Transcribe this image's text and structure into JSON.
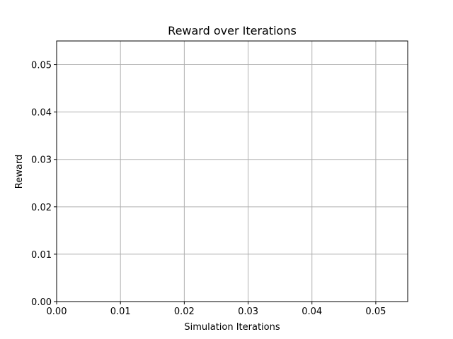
{
  "chart_data": {
    "type": "line",
    "title": "Reward over Iterations",
    "xlabel": "Simulation Iterations",
    "ylabel": "Reward",
    "xlim": [
      0,
      0.055
    ],
    "ylim": [
      0,
      0.055
    ],
    "x_ticks": [
      0.0,
      0.01,
      0.02,
      0.03,
      0.04,
      0.05
    ],
    "y_ticks": [
      0.0,
      0.01,
      0.02,
      0.03,
      0.04,
      0.05
    ],
    "x_tick_labels": [
      "0.00",
      "0.01",
      "0.02",
      "0.03",
      "0.04",
      "0.05"
    ],
    "y_tick_labels": [
      "0.00",
      "0.01",
      "0.02",
      "0.03",
      "0.04",
      "0.05"
    ],
    "grid": true,
    "series": []
  },
  "colors": {
    "grid": "#b0b0b0",
    "axes": "#000000",
    "background": "#ffffff"
  }
}
